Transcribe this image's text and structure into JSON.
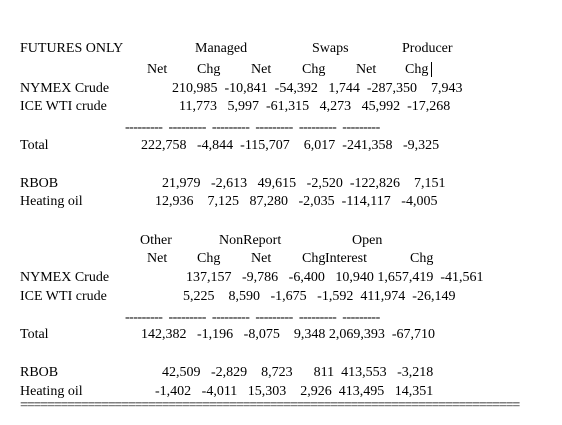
{
  "futures_table": {
    "section1": {
      "title_line": "FUTURES ONLY              Managed              Swaps           Producer",
      "subhead_line": "                            Net     Chg      Net      Chg       Net     Chg",
      "rows": [
        {
          "label": "NYMEX Crude",
          "values": "210,985  -10,841  -54,392   1,744  -287,350    7,943"
        },
        {
          "label": "ICE WTI crude",
          "values": "11,773   5,997  -61,315   4,273   45,992  -17,268"
        },
        {
          "label": "",
          "values": "---------  ---------  ---------  ---------  ---------  ---------"
        },
        {
          "label": "Total",
          "values": "222,758   -4,844  -115,707    6,017  -241,358   -9,325"
        },
        {
          "label": "",
          "values": ""
        },
        {
          "label": "RBOB",
          "values": "21,979   -2,613   49,615   -2,520  -122,826    7,151"
        },
        {
          "label": "Heating oil",
          "values": "12,936    7,125   87,280   -2,035  -114,117   -4,005"
        }
      ]
    },
    "section2": {
      "title_line": "                            Other       NonReport               Open",
      "subhead_line": "                             Net     Chg      Net      Chg  Interest     Chg",
      "rows": [
        {
          "label": "NYMEX Crude",
          "values": "137,157   -9,786   -6,400   10,940 1,657,419  -41,561"
        },
        {
          "label": "ICE WTI crude",
          "values": "5,225    8,590   -1,675   -1,592  411,974  -26,149"
        },
        {
          "label": "",
          "values": "---------  ---------  ---------  ---------  ---------  ---------"
        },
        {
          "label": "Total",
          "values": "142,382   -1,196   -8,075    9,348 2,069,393  -67,710"
        },
        {
          "label": "",
          "values": ""
        },
        {
          "label": "RBOB",
          "values": "42,509   -2,829    8,723      811  413,553   -3,218"
        },
        {
          "label": "Heating oil",
          "values": "-1,402   -4,011   15,303    2,926  413,495   14,351"
        }
      ]
    },
    "footer_rule": "=========================================================================="
  }
}
